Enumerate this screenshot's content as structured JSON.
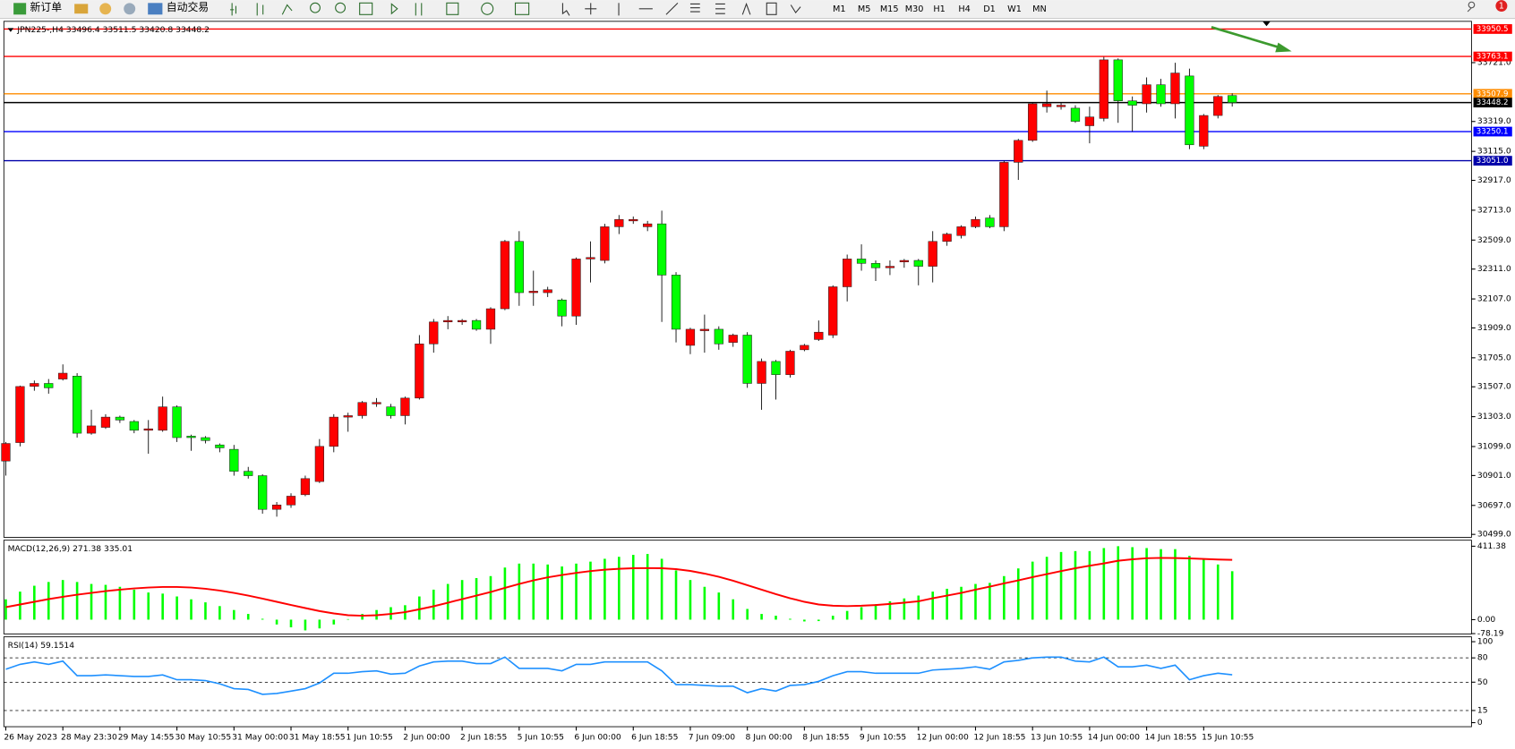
{
  "toolbar": {
    "buttons": [
      "新订单",
      "自动交易"
    ],
    "timeframes": [
      "M1",
      "M5",
      "M15",
      "M30",
      "H1",
      "H4",
      "D1",
      "W1",
      "MN"
    ],
    "badge": "1"
  },
  "chart_data": [
    {
      "type": "candlestick",
      "title": "JPN225-,H4  33496.4 33511.5 33420.8 33448.2",
      "categories": [
        "26 May 2023",
        null,
        null,
        null,
        "28 May 23:30",
        null,
        null,
        null,
        "29 May 14:55",
        null,
        null,
        null,
        "30 May 10:55",
        null,
        null,
        null,
        "31 May 00:00",
        null,
        null,
        null,
        "31 May 18:55",
        null,
        null,
        null,
        "1 Jun 10:55",
        null,
        null,
        null,
        "2 Jun 00:00",
        null,
        null,
        null,
        "2 Jun 18:55",
        null,
        null,
        null,
        "5 Jun 10:55",
        null,
        null,
        null,
        "6 Jun 00:00",
        null,
        null,
        null,
        "6 Jun 18:55",
        null,
        null,
        null,
        "7 Jun 09:00",
        null,
        null,
        null,
        "8 Jun 00:00",
        null,
        null,
        null,
        "8 Jun 18:55",
        null,
        null,
        null,
        "9 Jun 10:55",
        null,
        null,
        null,
        "12 Jun 00:00",
        null,
        null,
        null,
        "12 Jun 18:55",
        null,
        null,
        null,
        "13 Jun 10:55",
        null,
        null,
        null,
        "14 Jun 00:00",
        null,
        null,
        null,
        "14 Jun 18:55",
        null,
        null,
        null,
        "15 Jun 10:55",
        null,
        null
      ],
      "open": [
        31000,
        31126,
        31510,
        31530,
        31560,
        31580,
        31190,
        31230,
        31300,
        31270,
        31210,
        31210,
        31370,
        31170,
        31160,
        31110,
        31080,
        30930,
        30900,
        30670,
        30700,
        30770,
        30860,
        31100,
        31300,
        31310,
        31390,
        31370,
        31310,
        31430,
        31800,
        31950,
        31950,
        31960,
        31900,
        32040,
        32500,
        32150,
        32150,
        32100,
        31990,
        32380,
        32370,
        32600,
        32640,
        32600,
        32620,
        32270,
        31790,
        31890,
        31900,
        31810,
        31860,
        31530,
        31680,
        31590,
        31760,
        31830,
        31860,
        32190,
        32380,
        32350,
        32320,
        32360,
        32370,
        32330,
        32500,
        32540,
        32600,
        32660,
        32600,
        33040,
        33190,
        33420,
        33420,
        33410,
        33290,
        33340,
        33740,
        33460,
        33440,
        33570,
        33440,
        33630,
        33150,
        33360,
        33496.4
      ],
      "high": [
        31130,
        31515,
        31550,
        31560,
        31660,
        31600,
        31350,
        31320,
        31310,
        31280,
        31280,
        31440,
        31380,
        31180,
        31170,
        31120,
        31110,
        30960,
        30910,
        30720,
        30780,
        30900,
        31150,
        31320,
        31330,
        31410,
        31430,
        31390,
        31440,
        31860,
        31970,
        31990,
        31970,
        31970,
        32050,
        32510,
        32570,
        32300,
        32190,
        32110,
        32390,
        32500,
        32620,
        32680,
        32670,
        32640,
        32710,
        32290,
        31910,
        32000,
        31920,
        31870,
        31880,
        31700,
        31690,
        31760,
        31800,
        31960,
        32200,
        32410,
        32480,
        32370,
        32370,
        32380,
        32380,
        32570,
        32560,
        32610,
        32670,
        32680,
        33050,
        33200,
        33450,
        33530,
        33450,
        33430,
        33420,
        33760,
        33750,
        33490,
        33620,
        33610,
        33720,
        33680,
        33370,
        33500,
        33511.5
      ],
      "low": [
        30900,
        31100,
        31480,
        31460,
        31550,
        31160,
        31180,
        31220,
        31260,
        31190,
        31050,
        31200,
        31130,
        31070,
        31120,
        31060,
        30900,
        30880,
        30640,
        30620,
        30680,
        30760,
        30850,
        31060,
        31200,
        31290,
        31370,
        31290,
        31250,
        31420,
        31740,
        31900,
        31930,
        31890,
        31800,
        32030,
        32060,
        32060,
        32120,
        31920,
        31930,
        32220,
        32350,
        32550,
        32620,
        32570,
        31950,
        31810,
        31730,
        31740,
        31760,
        31780,
        31500,
        31350,
        31420,
        31570,
        31750,
        31820,
        31840,
        32090,
        32300,
        32230,
        32270,
        32320,
        32200,
        32220,
        32470,
        32520,
        32590,
        32590,
        32570,
        32920,
        33180,
        33380,
        33400,
        33310,
        33170,
        33320,
        33310,
        33250,
        33380,
        33420,
        33340,
        33130,
        33130,
        33340,
        33420.8
      ],
      "close": [
        31120,
        31509,
        31530,
        31500,
        31600,
        31190,
        31240,
        31300,
        31280,
        31210,
        31220,
        31370,
        31160,
        31160,
        31140,
        31090,
        30930,
        30900,
        30670,
        30700,
        30760,
        30880,
        31100,
        31300,
        31310,
        31400,
        31400,
        31310,
        31430,
        31800,
        31950,
        31960,
        31960,
        31900,
        32040,
        32500,
        32150,
        32160,
        32170,
        31990,
        32380,
        32390,
        32600,
        32650,
        32650,
        32620,
        32270,
        31900,
        31900,
        31900,
        31800,
        31860,
        31530,
        31680,
        31590,
        31750,
        31790,
        31880,
        32190,
        32380,
        32350,
        32320,
        32330,
        32370,
        32330,
        32500,
        32550,
        32600,
        32650,
        32600,
        33040,
        33190,
        33440,
        33440,
        33430,
        33320,
        33350,
        33740,
        33460,
        33430,
        33570,
        33440,
        33650,
        33160,
        33360,
        33490,
        33448.2
      ],
      "up_color": "#ff0000",
      "down_color": "#00ff00",
      "ylim": [
        30479,
        34003
      ],
      "yticks": [
        {
          "value": 33721,
          "label": "33721.0"
        },
        {
          "value": 33319,
          "label": "33319.0"
        },
        {
          "value": 33115,
          "label": "33115.0"
        },
        {
          "value": 32917,
          "label": "32917.0"
        },
        {
          "value": 32713,
          "label": "32713.0"
        },
        {
          "value": 32509,
          "label": "32509.0"
        },
        {
          "value": 32311,
          "label": "32311.0"
        },
        {
          "value": 32107,
          "label": "32107.0"
        },
        {
          "value": 31909,
          "label": "31909.0"
        },
        {
          "value": 31705,
          "label": "31705.0"
        },
        {
          "value": 31507,
          "label": "31507.0"
        },
        {
          "value": 31303,
          "label": "31303.0"
        },
        {
          "value": 31099,
          "label": "31099.0"
        },
        {
          "value": 30901,
          "label": "30901.0"
        },
        {
          "value": 30697,
          "label": "30697.0"
        },
        {
          "value": 30499,
          "label": "30499.0"
        }
      ],
      "hlines": [
        {
          "value": 33950.5,
          "color": "#ff0000"
        },
        {
          "value": 33763.1,
          "color": "#ff0000"
        },
        {
          "value": 33507.9,
          "color": "#ff8c00"
        },
        {
          "value": 33448.2,
          "color": "#000000"
        },
        {
          "value": 33250.1,
          "color": "#0000ff"
        },
        {
          "value": 33051,
          "label": "33051.0",
          "color": "#0000aa"
        }
      ]
    },
    {
      "type": "macd",
      "title": "MACD(12,26,9) 271.38 335.01",
      "histogram": [
        114,
        157,
        190,
        211,
        222,
        211,
        200,
        195,
        184,
        168,
        152,
        146,
        130,
        114,
        97,
        76,
        54,
        32,
        5,
        -27,
        -43,
        -60,
        -49,
        -27,
        3,
        32,
        54,
        70,
        81,
        130,
        168,
        200,
        222,
        233,
        244,
        292,
        314,
        314,
        309,
        298,
        314,
        325,
        341,
        352,
        363,
        368,
        341,
        276,
        222,
        184,
        152,
        114,
        60,
        32,
        22,
        5,
        -10,
        -8,
        22,
        49,
        70,
        87,
        103,
        119,
        135,
        157,
        173,
        184,
        200,
        206,
        244,
        287,
        325,
        352,
        379,
        384,
        384,
        401,
        411.38,
        406,
        401,
        395,
        395,
        357,
        336,
        309,
        271.38
      ],
      "signal": [
        70,
        85,
        100,
        115,
        128,
        140,
        150,
        160,
        168,
        175,
        180,
        183,
        183,
        180,
        173,
        163,
        150,
        135,
        118,
        100,
        82,
        65,
        48,
        35,
        25,
        22,
        25,
        32,
        42,
        58,
        75,
        95,
        115,
        135,
        155,
        178,
        200,
        220,
        237,
        250,
        262,
        272,
        280,
        285,
        288,
        289,
        288,
        283,
        273,
        258,
        240,
        218,
        193,
        168,
        143,
        120,
        100,
        85,
        78,
        76,
        78,
        82,
        88,
        95,
        103,
        120,
        135,
        150,
        168,
        185,
        203,
        220,
        238,
        255,
        272,
        288,
        302,
        315,
        330,
        338,
        344,
        346,
        345,
        343,
        340,
        337,
        335.01
      ],
      "hist_color": "#00ff00",
      "signal_color": "#ff0000",
      "ylim": [
        -80,
        445
      ],
      "yticks": [
        411.38,
        {
          "value": 0,
          "label": "0.00"
        },
        -78.19
      ]
    },
    {
      "type": "line",
      "title": "RSI(14) 59.1514",
      "values": [
        66,
        72,
        75,
        72,
        76,
        58,
        58,
        59,
        58,
        57,
        57,
        59,
        53,
        53,
        52,
        48,
        42,
        41,
        35,
        36,
        39,
        42,
        49,
        61,
        61,
        63,
        64,
        60,
        61,
        70,
        75,
        76,
        76,
        73,
        73,
        81,
        67,
        67,
        67,
        64,
        72,
        72,
        75,
        75,
        75,
        75,
        64,
        47,
        47,
        46,
        45,
        45,
        37,
        42,
        39,
        46,
        47,
        51,
        58,
        63,
        63,
        61,
        61,
        61,
        61,
        65,
        66,
        67,
        69,
        66,
        75,
        77,
        80,
        81,
        81,
        76,
        75,
        81,
        69,
        69,
        71,
        67,
        71,
        53,
        58,
        61,
        59.1514
      ],
      "color": "#1e90ff",
      "ylim": [
        -5,
        106
      ],
      "yticks": [
        100,
        80,
        50,
        15,
        0
      ],
      "levels": [
        80,
        50,
        15
      ]
    }
  ]
}
